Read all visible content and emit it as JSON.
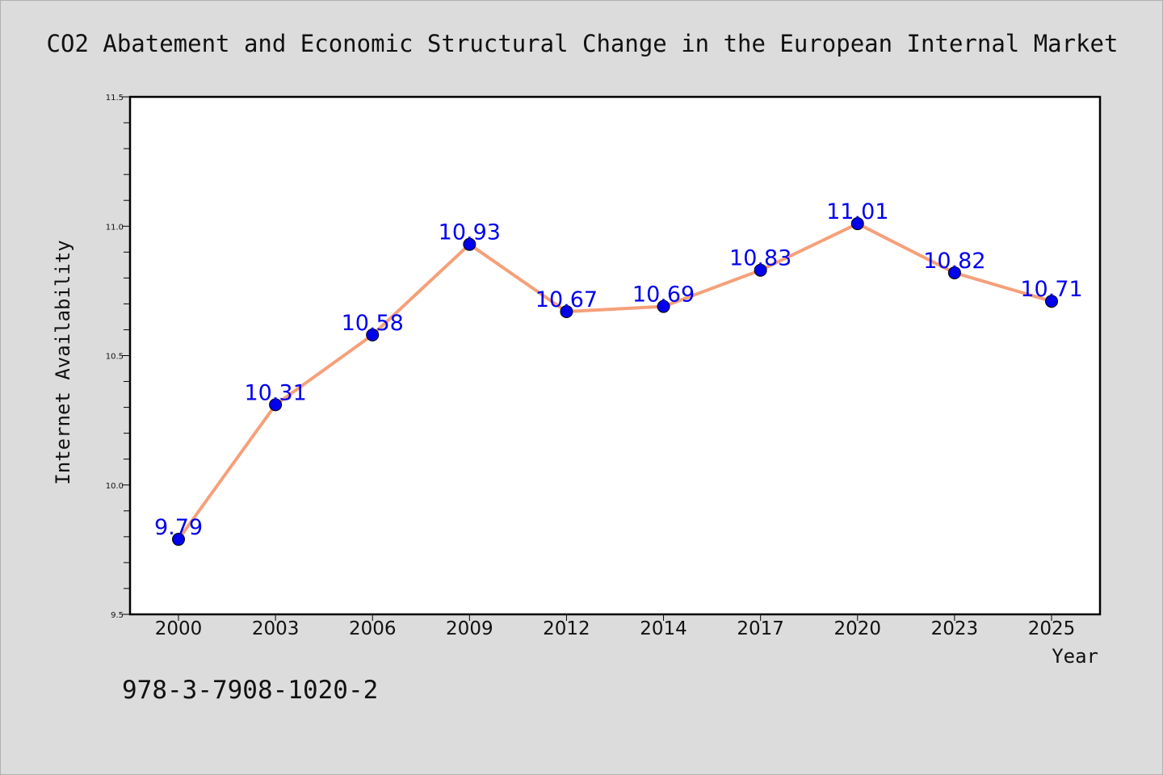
{
  "chart_data": {
    "type": "line",
    "title": "CO2 Abatement and Economic Structural Change in the European Internal Market",
    "xlabel": "Year",
    "ylabel": "Internet Availability",
    "categories": [
      "2000",
      "2003",
      "2006",
      "2009",
      "2012",
      "2014",
      "2017",
      "2020",
      "2023",
      "2025"
    ],
    "series": [
      {
        "values": [
          9.79,
          10.31,
          10.58,
          10.93,
          10.67,
          10.69,
          10.83,
          11.01,
          10.82,
          10.71
        ],
        "data_labels": [
          "9.79",
          "10.31",
          "10.58",
          "10.93",
          "10.67",
          "10.69",
          "10.83",
          "11.01",
          "10.82",
          "10.71"
        ],
        "line_color": "#f5a07a",
        "marker_color": "#0000ee"
      }
    ],
    "ylim": [
      9.5,
      11.5
    ],
    "yticks": [
      "9.5",
      "10.0",
      "10.5",
      "11.0",
      "11.5"
    ],
    "grid": false,
    "legend": "none",
    "annotation": "978-3-7908-1020-2",
    "label_color": "#0000ee"
  }
}
